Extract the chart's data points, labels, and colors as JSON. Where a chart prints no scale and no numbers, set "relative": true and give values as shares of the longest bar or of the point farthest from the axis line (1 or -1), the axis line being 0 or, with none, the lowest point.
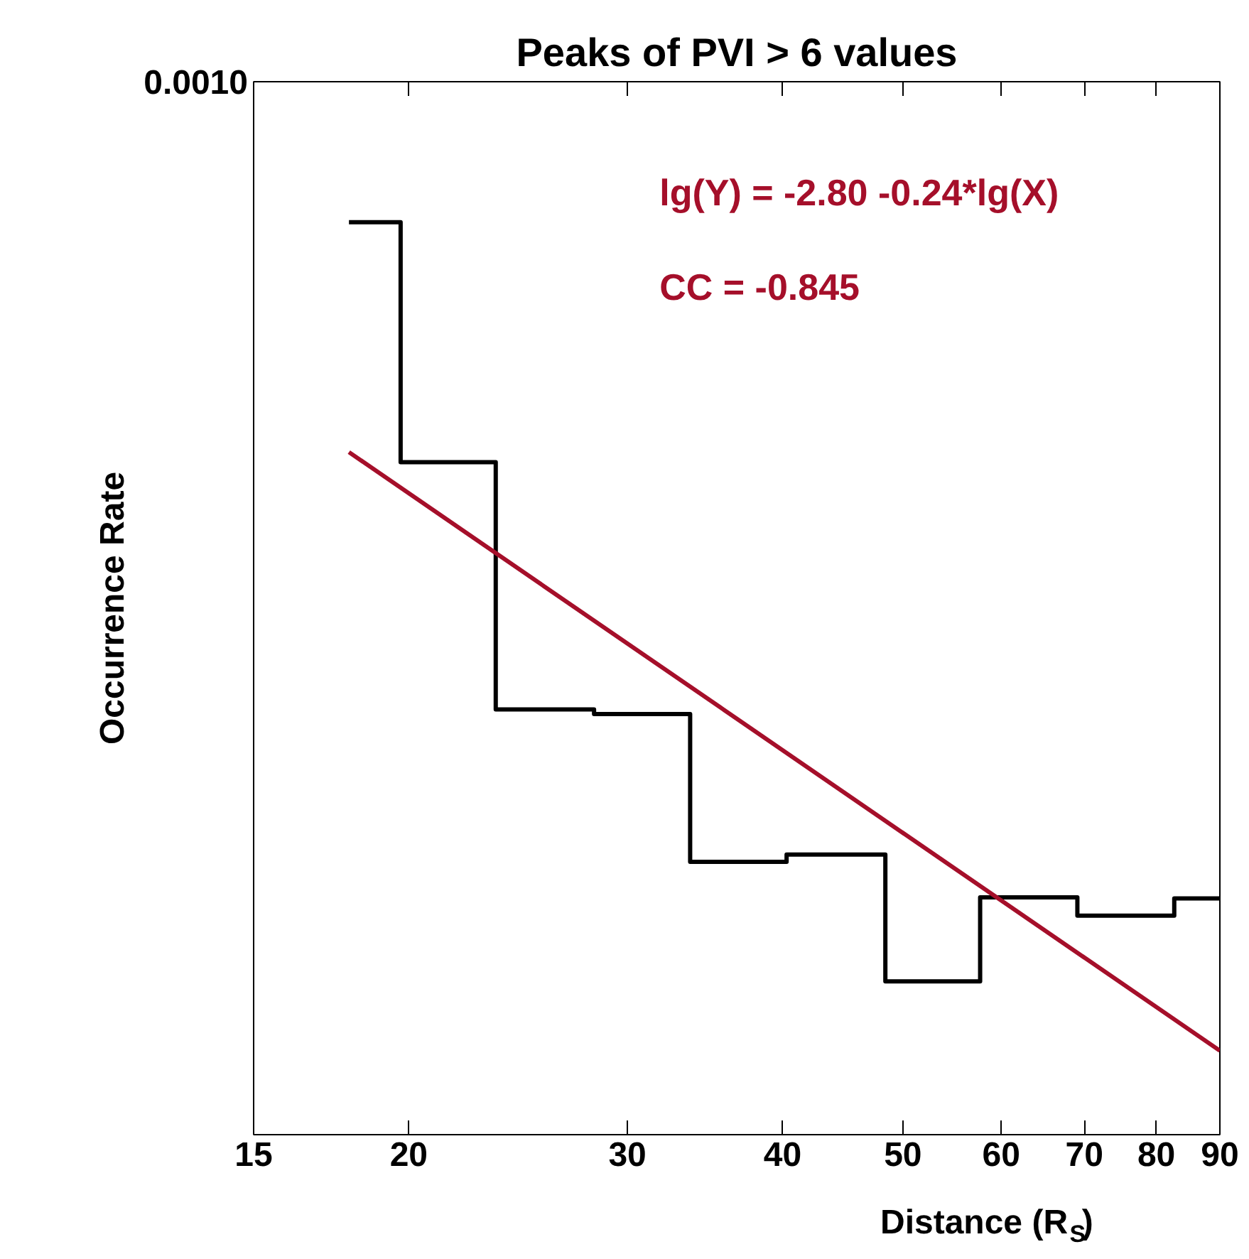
{
  "chart_data": {
    "type": "step",
    "title": "Peaks of PVI > 6 values",
    "xlabel": "Distance (R$_{S}$)",
    "ylabel": "Occurrence Rate",
    "annotations": [
      "0.0010",
      "lg(Y) = -2.80 -0.24*lg(X)",
      "CC = -0.845"
    ],
    "relative": true,
    "log": "x",
    "grid": false,
    "xlim": [
      15,
      90
    ],
    "xticks": [
      15,
      20,
      30,
      40,
      50,
      60,
      70,
      80,
      90
    ],
    "series": [
      {
        "color": "#000000",
        "x": [
          17.9,
          19.7,
          23.5,
          28.2,
          33.7,
          40.3,
          48.4,
          57.7,
          69.1,
          82.7,
          90
        ],
        "values": [
          1,
          0.737,
          0.466,
          0.461,
          0.299,
          0.307,
          0.168,
          0.26,
          0.24,
          0.259,
          0.259
        ]
      },
      {
        "type": "line",
        "color": "#a50f2a",
        "x": [
          17.9,
          90
        ],
        "values": [
          0.748,
          0.092
        ]
      }
    ]
  }
}
